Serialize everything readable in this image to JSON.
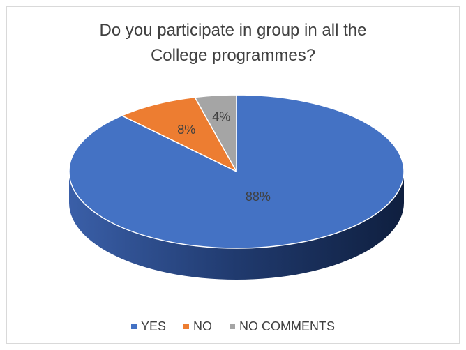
{
  "chart_data": {
    "type": "pie",
    "title": [
      "Do you participate in group in all the",
      "College programmes?"
    ],
    "categories": [
      "YES",
      "NO",
      "NO COMMENTS"
    ],
    "values": [
      88,
      8,
      4
    ],
    "data_labels": [
      "88%",
      "8%",
      "4%"
    ],
    "colors": [
      "#4472c4",
      "#ed7d31",
      "#a5a5a5"
    ],
    "side_colors": [
      "#2f4f8f",
      "#a85520",
      "#707070"
    ],
    "legend_position": "bottom",
    "three_d": true
  }
}
